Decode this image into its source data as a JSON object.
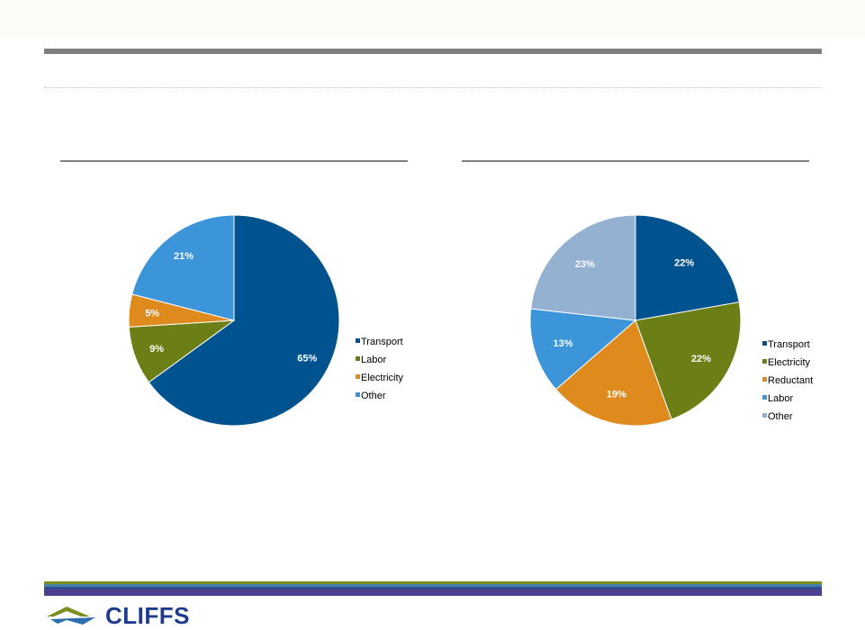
{
  "colors": {
    "title_rule": "#7f7f7f",
    "footer_stripes": [
      "#7a8f1e",
      "#4a7fa7",
      "#2a4f96",
      "#4b3f8f"
    ],
    "logo_text": "#1f3b8f"
  },
  "logo": {
    "text": "CLIFFS",
    "icon": "mountain-chevron-icon"
  },
  "chart_data": [
    {
      "type": "pie",
      "title": "",
      "labels": [
        "Transport",
        "Labor",
        "Electricity",
        "Other"
      ],
      "values": [
        65,
        9,
        5,
        21
      ],
      "value_labels": [
        "65%",
        "9%",
        "5%",
        "21%"
      ],
      "colors": [
        "#00538f",
        "#6c7f16",
        "#df8a1c",
        "#3b95d8"
      ],
      "legend": {
        "position": "right",
        "entries": [
          "Transport",
          "Labor",
          "Electricity",
          "Other"
        ]
      }
    },
    {
      "type": "pie",
      "title": "",
      "labels": [
        "Transport",
        "Electricity",
        "Reductant",
        "Labor",
        "Other"
      ],
      "values": [
        22,
        22,
        19,
        13,
        23
      ],
      "value_labels": [
        "22%",
        "22%",
        "19%",
        "13%",
        "23%"
      ],
      "colors": [
        "#00538f",
        "#6c7f16",
        "#df8a1c",
        "#3b95d8",
        "#95b1d1"
      ],
      "legend": {
        "position": "right",
        "entries": [
          "Transport",
          "Electricity",
          "Reductant",
          "Labor",
          "Other"
        ]
      }
    }
  ]
}
